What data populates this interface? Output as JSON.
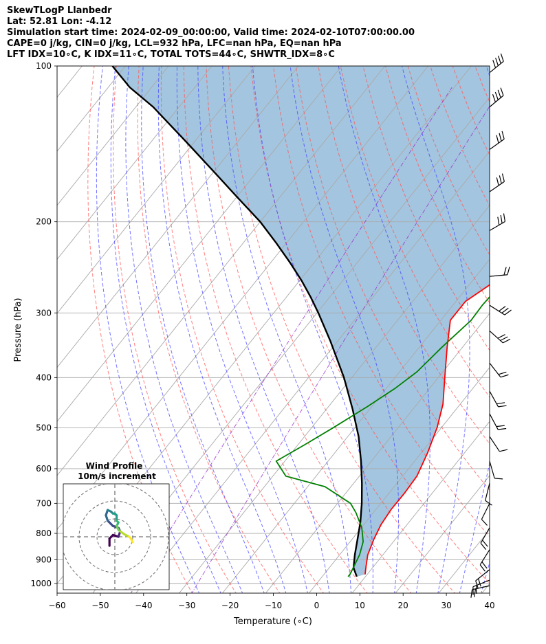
{
  "header": {
    "line1": "SkewTLogP Llanbedr",
    "line2": "Lat: 52.81   Lon: -4.12",
    "line3": "Simulation start time: 2024-02-09_00:00:00, Valid time: 2024-02-10T07:00:00.00",
    "line4": "CAPE=0 j/kg, CIN=0 j/kg, LCL=932 hPa, LFC=nan hPa, EQ=nan hPa",
    "line5": "LFT IDX=10∘C, K IDX=11∘C, TOTAL TOTS=44∘C, SHWTR_IDX=8∘C"
  },
  "chart_data": {
    "type": "line",
    "subtype": "skew-T log-P",
    "xlabel": "Temperature (∘C)",
    "ylabel": "Pressure (hPa)",
    "xlim": [
      -60,
      40
    ],
    "ylim": [
      1050,
      100
    ],
    "y_scale": "log",
    "x_ticks": [
      "−60",
      "−50",
      "−40",
      "−30",
      "−20",
      "−10",
      "0",
      "10",
      "20",
      "30",
      "40"
    ],
    "y_ticks": [
      "100",
      "200",
      "300",
      "400",
      "500",
      "600",
      "700",
      "800",
      "900",
      "1000"
    ],
    "y_tick_values": [
      100,
      200,
      300,
      400,
      500,
      600,
      700,
      800,
      900,
      1000
    ],
    "colors": {
      "temperature": "#ff0000",
      "dewpoint": "#008000",
      "parcel": "#000000",
      "shade": "#a3c5df",
      "dry_adiabat": "#ff5555",
      "moist_adiabat": "#4444ff",
      "mixing_ratio": "#9933cc",
      "isotherm": "#aaaaaa"
    },
    "series": [
      {
        "key": "temperature",
        "points": [
          [
            9.5,
            960
          ],
          [
            8,
            920
          ],
          [
            6.5,
            880
          ],
          [
            5,
            820
          ],
          [
            4,
            770
          ],
          [
            3.5,
            720
          ],
          [
            3.6,
            670
          ],
          [
            3.3,
            620
          ],
          [
            1.5,
            560
          ],
          [
            -1,
            500
          ],
          [
            -4,
            450
          ],
          [
            -8.5,
            400
          ],
          [
            -13.5,
            350
          ],
          [
            -17.8,
            310
          ],
          [
            -17.8,
            285
          ],
          [
            -15.3,
            265
          ],
          [
            -13.2,
            250
          ],
          [
            -10.5,
            230
          ],
          [
            -9.2,
            220
          ],
          [
            -8.5,
            210
          ],
          [
            -8.3,
            200
          ],
          [
            -8.3,
            185
          ],
          [
            -9.2,
            170
          ],
          [
            -10.4,
            155
          ],
          [
            -11.6,
            145
          ],
          [
            -13.2,
            135
          ],
          [
            -15.5,
            125
          ],
          [
            -17.2,
            115
          ],
          [
            -18.8,
            105
          ],
          [
            -19.3,
            100
          ]
        ]
      },
      {
        "key": "dewpoint",
        "points": [
          [
            6,
            970
          ],
          [
            6,
            960
          ],
          [
            5.5,
            930
          ],
          [
            4.6,
            880
          ],
          [
            3,
            830
          ],
          [
            0.1,
            780
          ],
          [
            -4,
            730
          ],
          [
            -7,
            700
          ],
          [
            -16,
            650
          ],
          [
            -27,
            620
          ],
          [
            -32,
            580
          ],
          [
            -28.5,
            540
          ],
          [
            -25,
            500
          ],
          [
            -21,
            455
          ],
          [
            -18,
            420
          ],
          [
            -16,
            390
          ],
          [
            -14.8,
            350
          ],
          [
            -13,
            310
          ],
          [
            -13.2,
            290
          ],
          [
            -12.7,
            260
          ],
          [
            -13,
            240
          ],
          [
            -14,
            225
          ],
          [
            -16.3,
            210
          ],
          [
            -17.5,
            200
          ],
          [
            -16.5,
            180
          ],
          [
            -15.6,
            165
          ],
          [
            -12.6,
            150
          ],
          [
            -9,
            133
          ],
          [
            -6.5,
            122
          ],
          [
            -3.2,
            110
          ],
          [
            -1,
            100
          ]
        ]
      },
      {
        "key": "parcel",
        "points": [
          [
            8,
            970
          ],
          [
            5.6,
            932
          ],
          [
            3.5,
            880
          ],
          [
            1.2,
            820
          ],
          [
            -1.3,
            760
          ],
          [
            -4.4,
            700
          ],
          [
            -8.1,
            640
          ],
          [
            -12.4,
            580
          ],
          [
            -17.5,
            520
          ],
          [
            -24,
            460
          ],
          [
            -31.8,
            400
          ],
          [
            -41.7,
            340
          ],
          [
            -49.7,
            300
          ],
          [
            -54.3,
            280
          ],
          [
            -59.5,
            260
          ],
          [
            -65.5,
            240
          ],
          [
            -72.3,
            220
          ],
          [
            -80,
            200
          ],
          [
            -89.5,
            180
          ],
          [
            -100,
            160
          ],
          [
            -112,
            140
          ],
          [
            -126,
            120
          ],
          [
            -135,
            110
          ],
          [
            -143,
            100
          ]
        ]
      }
    ],
    "wind_barbs": [
      {
        "p": 103,
        "u": -32,
        "v": -26
      },
      {
        "p": 120,
        "u": -30,
        "v": -25
      },
      {
        "p": 145,
        "u": -28,
        "v": -20
      },
      {
        "p": 175,
        "u": -26,
        "v": -18
      },
      {
        "p": 208,
        "u": -24,
        "v": -14
      },
      {
        "p": 255,
        "u": -22,
        "v": -2
      },
      {
        "p": 290,
        "u": -22,
        "v": 14
      },
      {
        "p": 325,
        "u": -20,
        "v": 18
      },
      {
        "p": 375,
        "u": -14,
        "v": 18
      },
      {
        "p": 425,
        "u": -10,
        "v": 18
      },
      {
        "p": 470,
        "u": -8,
        "v": 15
      },
      {
        "p": 520,
        "u": -8,
        "v": 12
      },
      {
        "p": 580,
        "u": -4,
        "v": 14
      },
      {
        "p": 640,
        "u": 3,
        "v": 12
      },
      {
        "p": 700,
        "u": 6,
        "v": 12
      },
      {
        "p": 780,
        "u": 8,
        "v": 14
      },
      {
        "p": 860,
        "u": 10,
        "v": 16
      },
      {
        "p": 940,
        "u": 15,
        "v": 12
      },
      {
        "p": 985,
        "u": 20,
        "v": 8
      },
      {
        "p": 1010,
        "u": 18,
        "v": 4
      }
    ],
    "hodograph": {
      "title": "Wind Profile",
      "subtitle": "10m/s increment",
      "rings_ms": [
        10,
        20,
        30
      ],
      "points": [
        [
          -3,
          -5
        ],
        [
          -3,
          -1
        ],
        [
          -1,
          1
        ],
        [
          2,
          0
        ],
        [
          3,
          3
        ],
        [
          2,
          5
        ],
        [
          -1,
          6
        ],
        [
          -4,
          9
        ],
        [
          -5,
          12
        ],
        [
          -4,
          15
        ],
        [
          -2,
          14
        ],
        [
          -1,
          13
        ],
        [
          0,
          13
        ],
        [
          1,
          12
        ],
        [
          1,
          9
        ],
        [
          2,
          8
        ],
        [
          1,
          6
        ],
        [
          2,
          4
        ],
        [
          3,
          3
        ],
        [
          6,
          1
        ],
        [
          8,
          0
        ],
        [
          9,
          -1
        ],
        [
          10,
          -3
        ]
      ]
    }
  }
}
